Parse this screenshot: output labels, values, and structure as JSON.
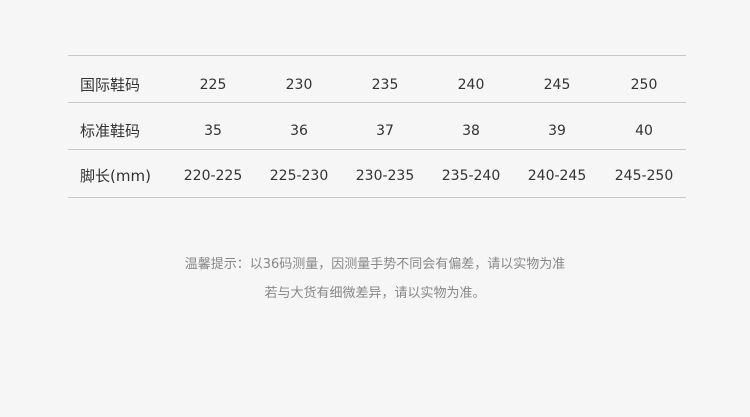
{
  "table": {
    "rows": [
      {
        "label": "国际鞋码",
        "values": [
          "225",
          "230",
          "235",
          "240",
          "245",
          "250"
        ]
      },
      {
        "label": "标准鞋码",
        "values": [
          "35",
          "36",
          "37",
          "38",
          "39",
          "40"
        ]
      },
      {
        "label": "脚长(mm)",
        "values": [
          "220-225",
          "225-230",
          "230-235",
          "235-240",
          "240-245",
          "245-250"
        ]
      }
    ]
  },
  "note": {
    "line1": "温馨提示：以36码测量，因测量手势不同会有偏差，请以实物为准",
    "line2": "若与大货有细微差异，请以实物为准。"
  }
}
